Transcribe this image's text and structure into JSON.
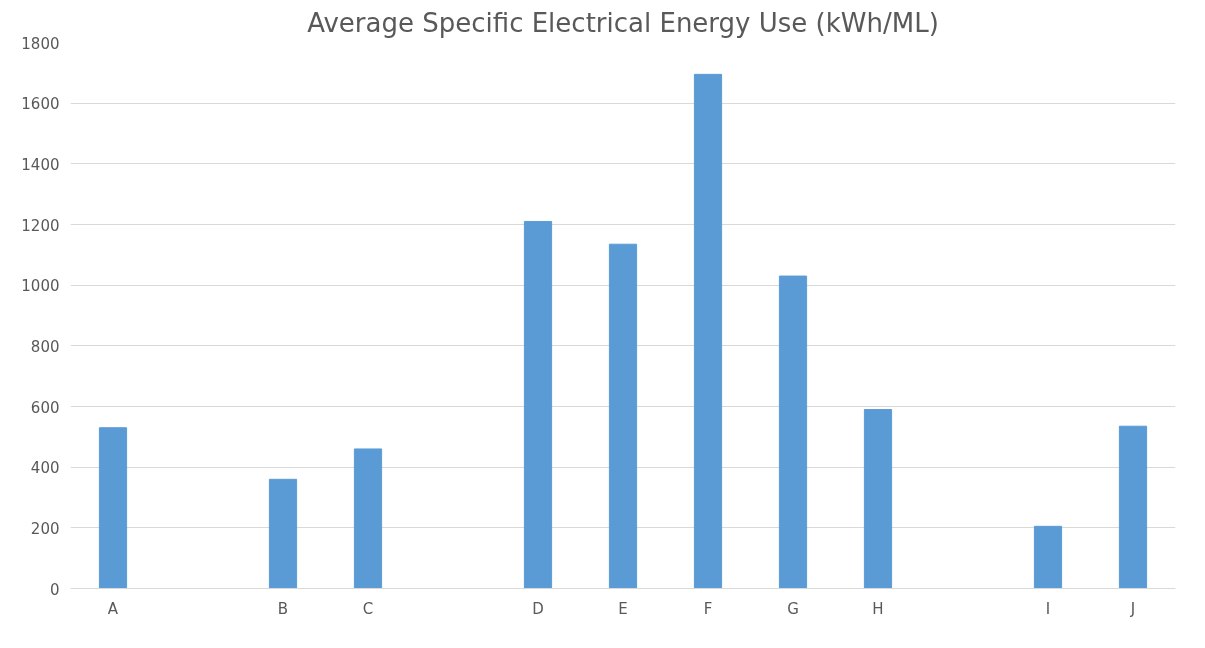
{
  "chart_data": {
    "type": "bar",
    "title": "Average Specific Electrical Energy Use (kWh/ML)",
    "categories": [
      "A",
      null,
      "B",
      "C",
      null,
      "D",
      "E",
      "F",
      "G",
      "H",
      null,
      "I",
      "J"
    ],
    "values": [
      530,
      null,
      360,
      460,
      null,
      1210,
      1135,
      1695,
      1030,
      590,
      null,
      205,
      535
    ],
    "color": "#5b9bd5",
    "ylim": [
      0,
      1800
    ],
    "yticks": [
      0,
      200,
      400,
      600,
      800,
      1000,
      1200,
      1400,
      1600,
      1800
    ],
    "grid": "y"
  }
}
